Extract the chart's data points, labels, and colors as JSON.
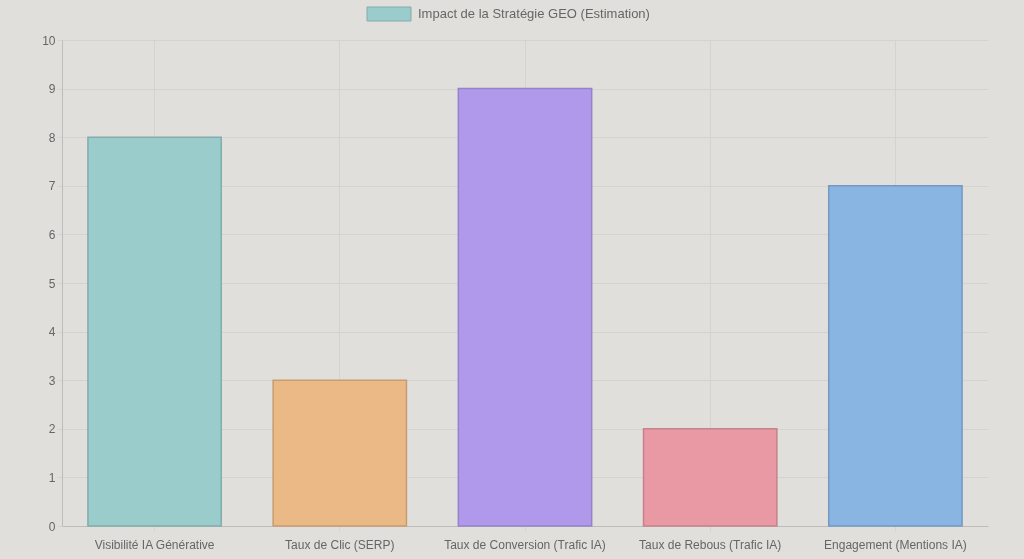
{
  "chart_data": {
    "type": "bar",
    "categories": [
      "Visibilité IA Générative",
      "Taux de Clic (SERP)",
      "Taux de Conversion (Trafic IA)",
      "Taux de Rebous (Trafic IA)",
      "Engagement (Mentions IA)"
    ],
    "series": [
      {
        "name": "Impact de la Stratégie GEO (Estimation)",
        "color": "#99cccb",
        "values": [
          8,
          3,
          9,
          2,
          7
        ],
        "colors": [
          "#99cccb",
          "#ebb986",
          "#b099eb",
          "#e899a3",
          "#88b5e2"
        ]
      }
    ],
    "ylim": [
      0,
      10
    ],
    "yticks": [
      0,
      1,
      2,
      3,
      4,
      5,
      6,
      7,
      8,
      9,
      10
    ],
    "grid": true,
    "legend": "top"
  }
}
